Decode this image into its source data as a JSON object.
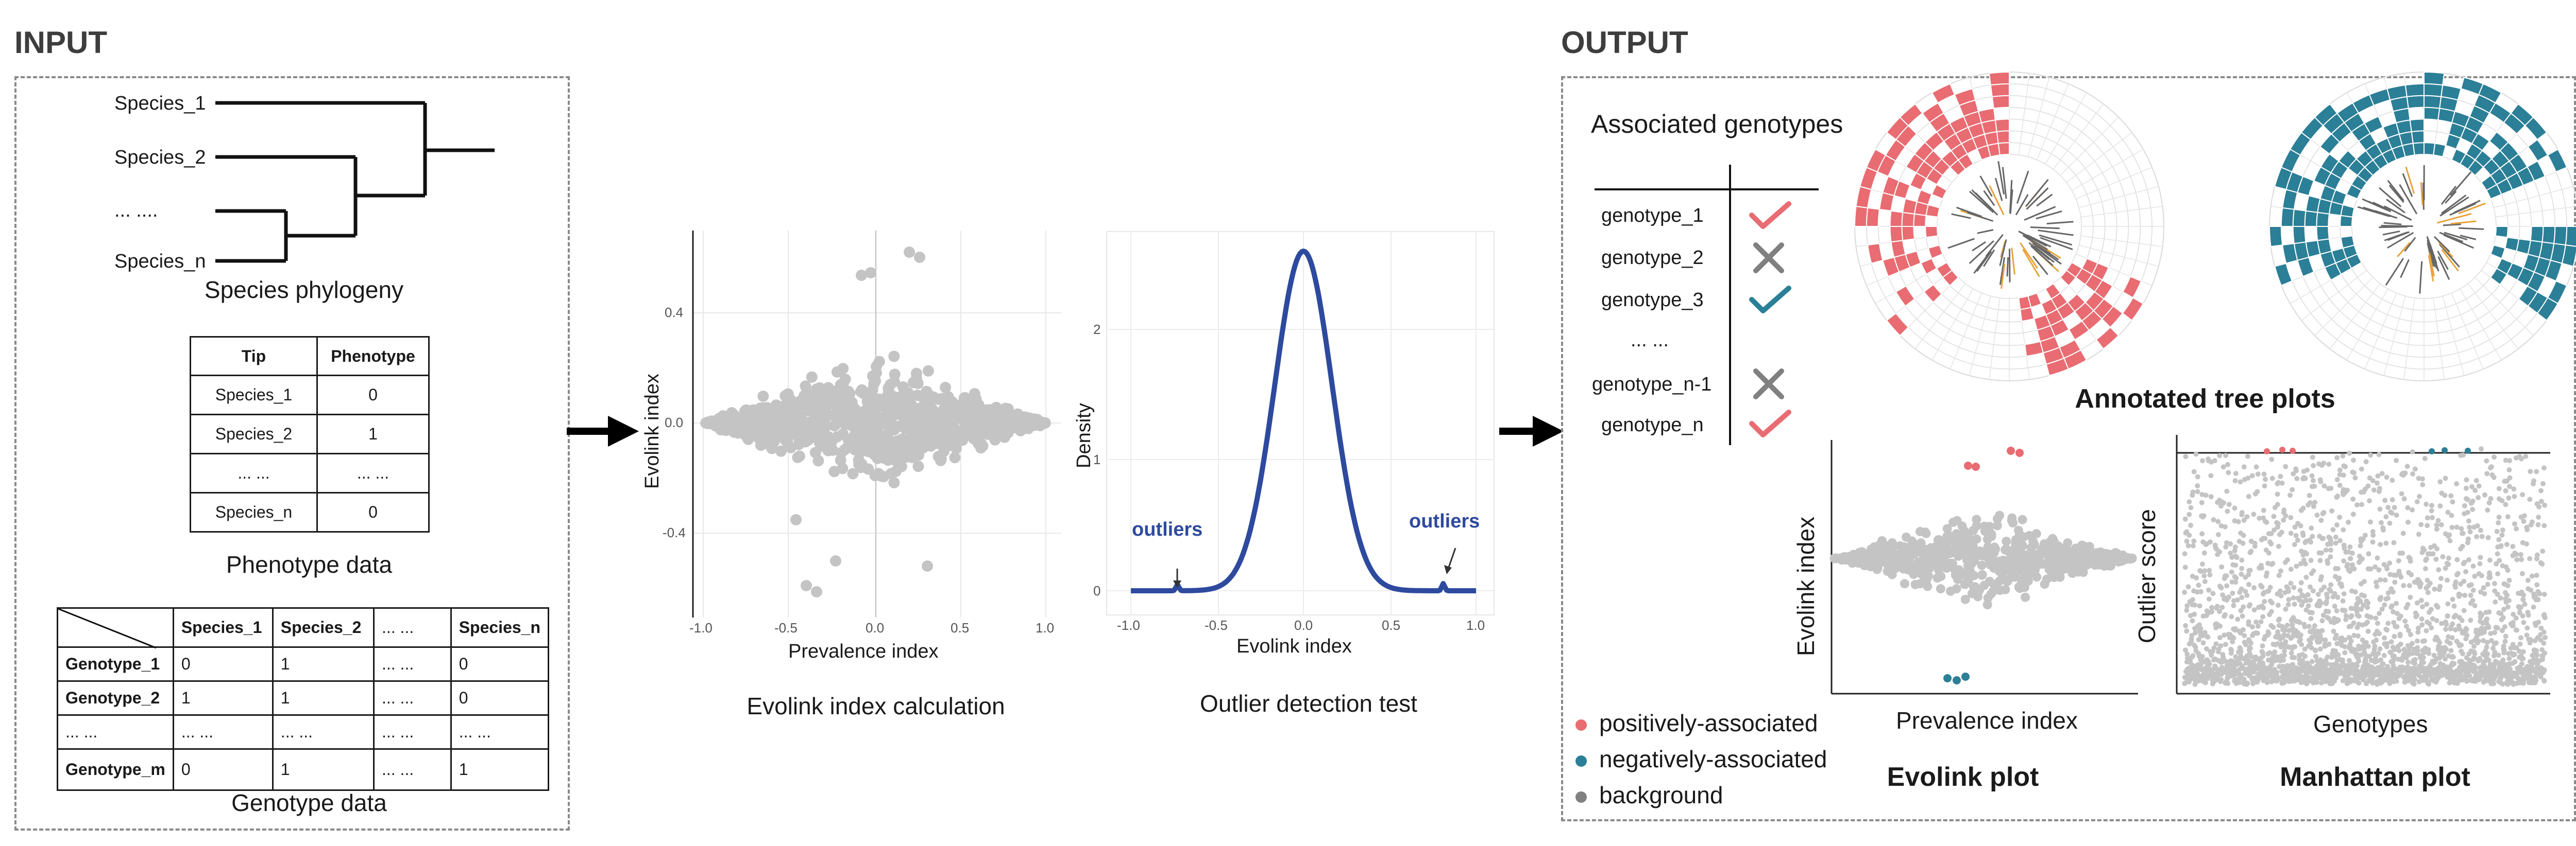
{
  "input": {
    "title": "INPUT",
    "phylogeny": {
      "species": [
        "Species_1",
        "Species_2",
        "... ....",
        "Species_n"
      ],
      "caption": "Species phylogeny"
    },
    "phenotype": {
      "headers": [
        "Tip",
        "Phenotype"
      ],
      "rows": [
        [
          "Species_1",
          "0"
        ],
        [
          "Species_2",
          "1"
        ],
        [
          "... ...",
          "... ..."
        ],
        [
          "Species_n",
          "0"
        ]
      ],
      "caption": "Phenotype data"
    },
    "genotype": {
      "headers": [
        "",
        "Species_1",
        "Species_2",
        "... ...",
        "Species_n"
      ],
      "rows": [
        [
          "Genotype_1",
          "0",
          "1",
          "... ...",
          "0"
        ],
        [
          "Genotype_2",
          "1",
          "1",
          "... ...",
          "0"
        ],
        [
          "... ...",
          "... ...",
          "... ...",
          "... ...",
          "... ..."
        ],
        [
          "Genotype_m",
          "0",
          "1",
          "... ...",
          "1"
        ]
      ],
      "caption": "Genotype data"
    }
  },
  "evolink_scatter": {
    "ylabel": "Evolink index",
    "xlabel": "Prevalence index",
    "yticks": [
      "0.4",
      "0.0",
      "-0.4"
    ],
    "xticks": [
      "-1.0",
      "-0.5",
      "0.0",
      "0.5",
      "1.0"
    ],
    "caption": "Evolink index calculation"
  },
  "density_plot": {
    "ylabel": "Density",
    "xlabel": "Evolink index",
    "yticks": [
      "2",
      "1",
      "0"
    ],
    "xticks": [
      "-1.0",
      "-0.5",
      "0.0",
      "0.5",
      "1.0"
    ],
    "annotation_left": "outliers",
    "annotation_right": "outliers",
    "caption": "Outlier detection test"
  },
  "output": {
    "title": "OUTPUT",
    "assoc_title": "Associated genotypes",
    "genotypes": [
      {
        "name": "genotype_1",
        "mark": "check",
        "color": "#e86c72"
      },
      {
        "name": "genotype_2",
        "mark": "cross",
        "color": "#808080"
      },
      {
        "name": "genotype_3",
        "mark": "check",
        "color": "#2b7f96"
      },
      {
        "name": "... ...",
        "mark": "",
        "color": ""
      },
      {
        "name": "genotype_n-1",
        "mark": "cross",
        "color": "#808080"
      },
      {
        "name": "genotype_n",
        "mark": "check",
        "color": "#e86c72"
      }
    ],
    "tree_caption": "Annotated tree plots",
    "evolink_plot": {
      "ylabel": "Evolink index",
      "xlabel": "Prevalence index",
      "caption": "Evolink plot"
    },
    "manhattan_plot": {
      "ylabel": "Outlier score",
      "xlabel": "Genotypes",
      "caption": "Manhattan plot"
    },
    "legend": [
      {
        "label": "positively-associated",
        "color": "#e86c72"
      },
      {
        "label": "negatively-associated",
        "color": "#2b7f96"
      },
      {
        "label": "background",
        "color": "#808080"
      }
    ]
  },
  "colors": {
    "pink": "#e86c72",
    "teal": "#2b7f96",
    "navy": "#2e4a9e",
    "gray_point": "#c4c4c4"
  }
}
